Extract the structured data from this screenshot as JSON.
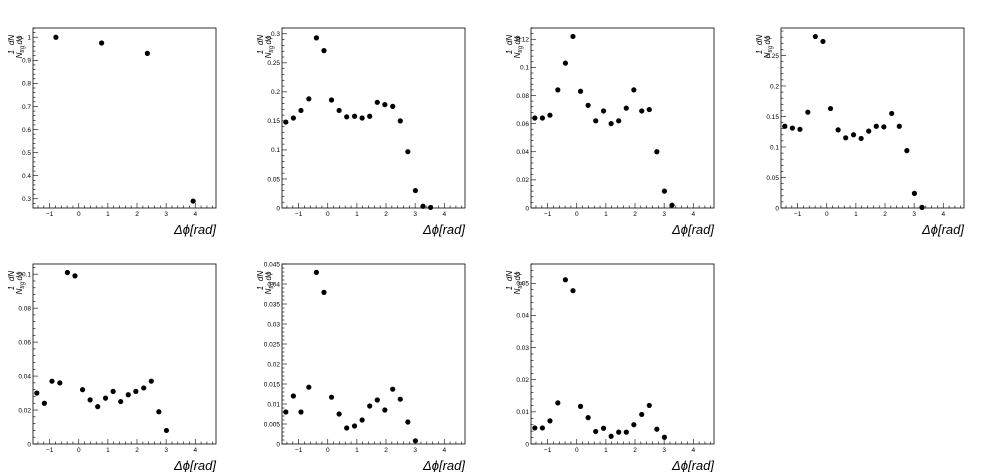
{
  "common": {
    "xlabel": "Δϕ[rad]",
    "ylabel_num": "1",
    "ylabel_numer": "dN",
    "ylabel_denom": "N",
    "ylabel_sub": "trg",
    "ylabel_dphi": "dϕ",
    "marker_color": "#000000",
    "axis_color": "#000000"
  },
  "chart_data": [
    {
      "type": "scatter",
      "xlim": [
        -1.571,
        4.712
      ],
      "ylim": [
        0.26,
        1.04
      ],
      "x_ticks": [
        -1,
        0,
        1,
        2,
        3,
        4
      ],
      "y_ticks": [
        0.3,
        0.4,
        0.5,
        0.6,
        0.7,
        0.8,
        0.9,
        1.0
      ],
      "y_tick_labels": [
        "0.3",
        "0.4",
        "0.5",
        "0.6",
        "0.7",
        "0.8",
        "0.9",
        "1"
      ],
      "x": [
        -0.785,
        0.785,
        2.356,
        3.927
      ],
      "y": [
        1.0,
        0.975,
        0.93,
        0.29
      ]
    },
    {
      "type": "scatter",
      "xlim": [
        -1.571,
        4.712
      ],
      "ylim": [
        0,
        0.31
      ],
      "x_ticks": [
        -1,
        0,
        1,
        2,
        3,
        4
      ],
      "y_ticks": [
        0,
        0.05,
        0.1,
        0.15,
        0.2,
        0.25,
        0.3
      ],
      "y_tick_labels": [
        "0",
        "0.05",
        "0.1",
        "0.15",
        "0.2",
        "0.25",
        "0.3"
      ],
      "x": [
        -1.44,
        -1.18,
        -0.92,
        -0.65,
        -0.39,
        -0.13,
        0.13,
        0.39,
        0.65,
        0.92,
        1.18,
        1.44,
        1.7,
        1.96,
        2.23,
        2.49,
        2.75,
        3.01,
        3.27,
        3.53,
        3.8,
        4.06,
        4.32
      ],
      "y": [
        0.148,
        0.155,
        0.168,
        0.188,
        0.293,
        0.271,
        0.186,
        0.168,
        0.157,
        0.158,
        0.155,
        0.158,
        0.182,
        0.178,
        0.175,
        0.15,
        0.097,
        0.03,
        0.003,
        0.001,
        null,
        null,
        null
      ]
    },
    {
      "type": "scatter",
      "xlim": [
        -1.571,
        4.712
      ],
      "ylim": [
        0,
        0.128
      ],
      "x_ticks": [
        -1,
        0,
        1,
        2,
        3,
        4
      ],
      "y_ticks": [
        0,
        0.02,
        0.04,
        0.06,
        0.08,
        0.1,
        0.12
      ],
      "y_tick_labels": [
        "0",
        "0.02",
        "0.04",
        "0.06",
        "0.08",
        "0.1",
        "0.12"
      ],
      "x": [
        -1.44,
        -1.18,
        -0.92,
        -0.65,
        -0.39,
        -0.13,
        0.13,
        0.39,
        0.65,
        0.92,
        1.18,
        1.44,
        1.7,
        1.96,
        2.23,
        2.49,
        2.75,
        3.01,
        3.27,
        3.53,
        3.8,
        4.06
      ],
      "y": [
        0.064,
        0.064,
        0.066,
        0.084,
        0.103,
        0.122,
        0.083,
        0.073,
        0.062,
        0.069,
        0.06,
        0.062,
        0.071,
        0.084,
        0.069,
        0.07,
        0.04,
        0.012,
        0.002,
        null,
        null,
        null
      ]
    },
    {
      "type": "scatter",
      "xlim": [
        -1.571,
        4.712
      ],
      "ylim": [
        0,
        0.295
      ],
      "x_ticks": [
        -1,
        0,
        1,
        2,
        3,
        4
      ],
      "y_ticks": [
        0,
        0.05,
        0.1,
        0.15,
        0.2,
        0.25
      ],
      "y_tick_labels": [
        "0",
        "0.05",
        "0.1",
        "0.15",
        "0.2",
        "0.25"
      ],
      "x": [
        -1.44,
        -1.18,
        -0.92,
        -0.65,
        -0.39,
        -0.13,
        0.13,
        0.39,
        0.65,
        0.92,
        1.18,
        1.44,
        1.7,
        1.96,
        2.23,
        2.49,
        2.75,
        3.01,
        3.27,
        3.53,
        3.8,
        4.06
      ],
      "y": [
        0.134,
        0.131,
        0.129,
        0.157,
        0.281,
        0.273,
        0.163,
        0.128,
        0.115,
        0.12,
        0.114,
        0.126,
        0.134,
        0.133,
        0.155,
        0.134,
        0.094,
        0.024,
        0.001,
        null,
        null,
        null
      ]
    },
    {
      "type": "scatter",
      "xlim": [
        -1.571,
        4.712
      ],
      "ylim": [
        0,
        0.106
      ],
      "x_ticks": [
        -1,
        0,
        1,
        2,
        3,
        4
      ],
      "y_ticks": [
        0,
        0.02,
        0.04,
        0.06,
        0.08,
        0.1
      ],
      "y_tick_labels": [
        "0",
        "0.02",
        "0.04",
        "0.06",
        "0.08",
        "0.1"
      ],
      "x": [
        -1.44,
        -1.18,
        -0.92,
        -0.65,
        -0.39,
        -0.13,
        0.13,
        0.39,
        0.65,
        0.92,
        1.18,
        1.44,
        1.7,
        1.96,
        2.23,
        2.49,
        2.75,
        3.01,
        3.27,
        3.53,
        3.8,
        4.06
      ],
      "y": [
        0.03,
        0.024,
        0.037,
        0.036,
        0.101,
        0.099,
        0.032,
        0.026,
        0.022,
        0.027,
        0.031,
        0.025,
        0.029,
        0.031,
        0.033,
        0.037,
        0.019,
        0.008,
        null,
        null,
        null,
        null
      ]
    },
    {
      "type": "scatter",
      "xlim": [
        -1.571,
        4.712
      ],
      "ylim": [
        0,
        0.045
      ],
      "x_ticks": [
        -1,
        0,
        1,
        2,
        3,
        4
      ],
      "y_ticks": [
        0,
        0.005,
        0.01,
        0.015,
        0.02,
        0.025,
        0.03,
        0.035,
        0.04,
        0.045
      ],
      "y_tick_labels": [
        "0",
        "0.005",
        "0.01",
        "0.015",
        "0.02",
        "0.025",
        "0.03",
        "0.035",
        "0.04",
        "0.045"
      ],
      "x": [
        -1.44,
        -1.18,
        -0.92,
        -0.65,
        -0.39,
        -0.13,
        0.13,
        0.39,
        0.65,
        0.92,
        1.18,
        1.44,
        1.7,
        1.96,
        2.23,
        2.49,
        2.75,
        3.01,
        3.27,
        3.53,
        3.8,
        4.06
      ],
      "y": [
        0.008,
        0.012,
        0.008,
        0.0142,
        0.0429,
        0.0379,
        0.0117,
        0.0075,
        0.004,
        0.0045,
        0.006,
        0.0095,
        0.011,
        0.0085,
        0.0137,
        0.0112,
        0.0055,
        0.0008,
        null,
        null,
        null,
        null
      ]
    },
    {
      "type": "scatter",
      "xlim": [
        -1.571,
        4.712
      ],
      "ylim": [
        0,
        0.056
      ],
      "x_ticks": [
        -1,
        0,
        1,
        2,
        3,
        4
      ],
      "y_ticks": [
        0,
        0.01,
        0.02,
        0.03,
        0.04,
        0.05
      ],
      "y_tick_labels": [
        "0",
        "0.01",
        "0.02",
        "0.03",
        "0.04",
        "0.05"
      ],
      "x": [
        -1.44,
        -1.18,
        -0.92,
        -0.65,
        -0.39,
        -0.13,
        0.13,
        0.39,
        0.65,
        0.92,
        1.18,
        1.44,
        1.7,
        1.96,
        2.23,
        2.49,
        2.75,
        3.01,
        3.27,
        3.53,
        3.8,
        4.06
      ],
      "y": [
        0.005,
        0.005,
        0.0072,
        0.0128,
        0.0511,
        0.0477,
        0.0117,
        0.0082,
        0.0039,
        0.0049,
        0.0024,
        0.0037,
        0.0037,
        0.006,
        0.0092,
        0.012,
        0.0046,
        0.0021,
        null,
        null,
        null,
        null
      ]
    }
  ]
}
